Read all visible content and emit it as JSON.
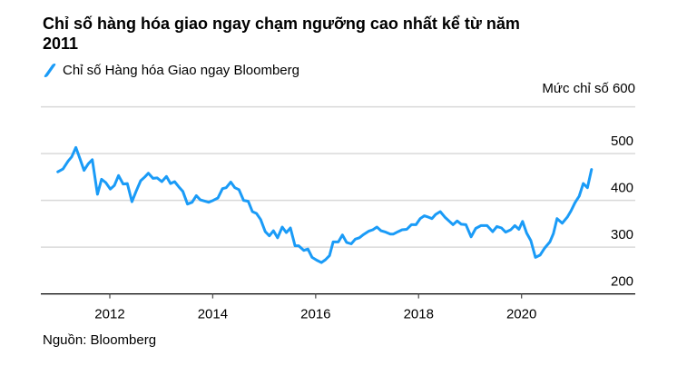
{
  "chart_data": {
    "type": "line",
    "title": "Chỉ số hàng hóa giao ngay chạm ngưỡng cao nhất kể từ năm 2011",
    "legend": [
      "Chỉ số Hàng hóa Giao ngay Bloomberg"
    ],
    "ylabel": "Mức chỉ số",
    "xlabel": "",
    "source": "Nguồn: Bloomberg",
    "xlim": [
      2010.66,
      2022.21
    ],
    "ylim": [
      200,
      600
    ],
    "x_ticks": [
      2012,
      2014,
      2016,
      2018,
      2020
    ],
    "x_tick_labels": [
      "2012",
      "2014",
      "2016",
      "2018",
      "2020"
    ],
    "y_ticks": [
      200,
      300,
      400,
      500,
      600
    ],
    "y_tick_labels": [
      "200",
      "300",
      "400",
      "500",
      "Mức chỉ số 600"
    ],
    "grid": true,
    "color": "#1a9bf7",
    "series": [
      {
        "name": "Chỉ số Hàng hóa Giao ngay Bloomberg",
        "points": [
          [
            2010.99,
            461
          ],
          [
            2011.09,
            467
          ],
          [
            2011.19,
            484
          ],
          [
            2011.26,
            493
          ],
          [
            2011.34,
            513
          ],
          [
            2011.42,
            489
          ],
          [
            2011.5,
            464
          ],
          [
            2011.58,
            478
          ],
          [
            2011.66,
            487
          ],
          [
            2011.76,
            413
          ],
          [
            2011.84,
            445
          ],
          [
            2011.92,
            438
          ],
          [
            2012.01,
            424
          ],
          [
            2012.09,
            432
          ],
          [
            2012.17,
            453
          ],
          [
            2012.26,
            435
          ],
          [
            2012.34,
            436
          ],
          [
            2012.43,
            397
          ],
          [
            2012.51,
            419
          ],
          [
            2012.6,
            442
          ],
          [
            2012.68,
            450
          ],
          [
            2012.75,
            458
          ],
          [
            2012.84,
            447
          ],
          [
            2012.92,
            448
          ],
          [
            2013.01,
            440
          ],
          [
            2013.1,
            451
          ],
          [
            2013.18,
            436
          ],
          [
            2013.26,
            440
          ],
          [
            2013.34,
            429
          ],
          [
            2013.42,
            419
          ],
          [
            2013.51,
            392
          ],
          [
            2013.6,
            396
          ],
          [
            2013.68,
            410
          ],
          [
            2013.76,
            401
          ],
          [
            2013.92,
            396
          ],
          [
            2014.01,
            400
          ],
          [
            2014.1,
            405
          ],
          [
            2014.19,
            425
          ],
          [
            2014.26,
            427
          ],
          [
            2014.35,
            439
          ],
          [
            2014.43,
            427
          ],
          [
            2014.51,
            423
          ],
          [
            2014.6,
            400
          ],
          [
            2014.69,
            398
          ],
          [
            2014.77,
            376
          ],
          [
            2014.85,
            372
          ],
          [
            2014.93,
            359
          ],
          [
            2015.02,
            333
          ],
          [
            2015.1,
            324
          ],
          [
            2015.18,
            335
          ],
          [
            2015.26,
            320
          ],
          [
            2015.35,
            343
          ],
          [
            2015.43,
            331
          ],
          [
            2015.51,
            341
          ],
          [
            2015.6,
            303
          ],
          [
            2015.67,
            303
          ],
          [
            2015.77,
            293
          ],
          [
            2015.85,
            296
          ],
          [
            2015.93,
            278
          ],
          [
            2016.02,
            272
          ],
          [
            2016.11,
            267
          ],
          [
            2016.19,
            273
          ],
          [
            2016.27,
            282
          ],
          [
            2016.34,
            311
          ],
          [
            2016.44,
            311
          ],
          [
            2016.52,
            326
          ],
          [
            2016.6,
            310
          ],
          [
            2016.69,
            307
          ],
          [
            2016.77,
            317
          ],
          [
            2016.85,
            320
          ],
          [
            2016.93,
            327
          ],
          [
            2017.03,
            334
          ],
          [
            2017.11,
            337
          ],
          [
            2017.19,
            343
          ],
          [
            2017.27,
            335
          ],
          [
            2017.36,
            332
          ],
          [
            2017.45,
            328
          ],
          [
            2017.51,
            328
          ],
          [
            2017.6,
            333
          ],
          [
            2017.68,
            337
          ],
          [
            2017.77,
            338
          ],
          [
            2017.86,
            348
          ],
          [
            2017.95,
            348
          ],
          [
            2018.03,
            361
          ],
          [
            2018.11,
            367
          ],
          [
            2018.19,
            364
          ],
          [
            2018.26,
            361
          ],
          [
            2018.33,
            370
          ],
          [
            2018.42,
            376
          ],
          [
            2018.51,
            364
          ],
          [
            2018.6,
            355
          ],
          [
            2018.67,
            348
          ],
          [
            2018.75,
            356
          ],
          [
            2018.83,
            349
          ],
          [
            2018.92,
            348
          ],
          [
            2019.02,
            322
          ],
          [
            2019.11,
            340
          ],
          [
            2019.21,
            346
          ],
          [
            2019.33,
            346
          ],
          [
            2019.44,
            333
          ],
          [
            2019.52,
            344
          ],
          [
            2019.61,
            341
          ],
          [
            2019.69,
            332
          ],
          [
            2019.79,
            337
          ],
          [
            2019.87,
            346
          ],
          [
            2019.95,
            338
          ],
          [
            2020.02,
            355
          ],
          [
            2020.1,
            330
          ],
          [
            2020.18,
            314
          ],
          [
            2020.27,
            278
          ],
          [
            2020.36,
            283
          ],
          [
            2020.45,
            298
          ],
          [
            2020.55,
            311
          ],
          [
            2020.62,
            329
          ],
          [
            2020.69,
            361
          ],
          [
            2020.79,
            351
          ],
          [
            2020.89,
            364
          ],
          [
            2020.96,
            377
          ],
          [
            2021.04,
            395
          ],
          [
            2021.12,
            409
          ],
          [
            2021.2,
            436
          ],
          [
            2021.28,
            427
          ],
          [
            2021.36,
            466
          ]
        ]
      }
    ]
  }
}
